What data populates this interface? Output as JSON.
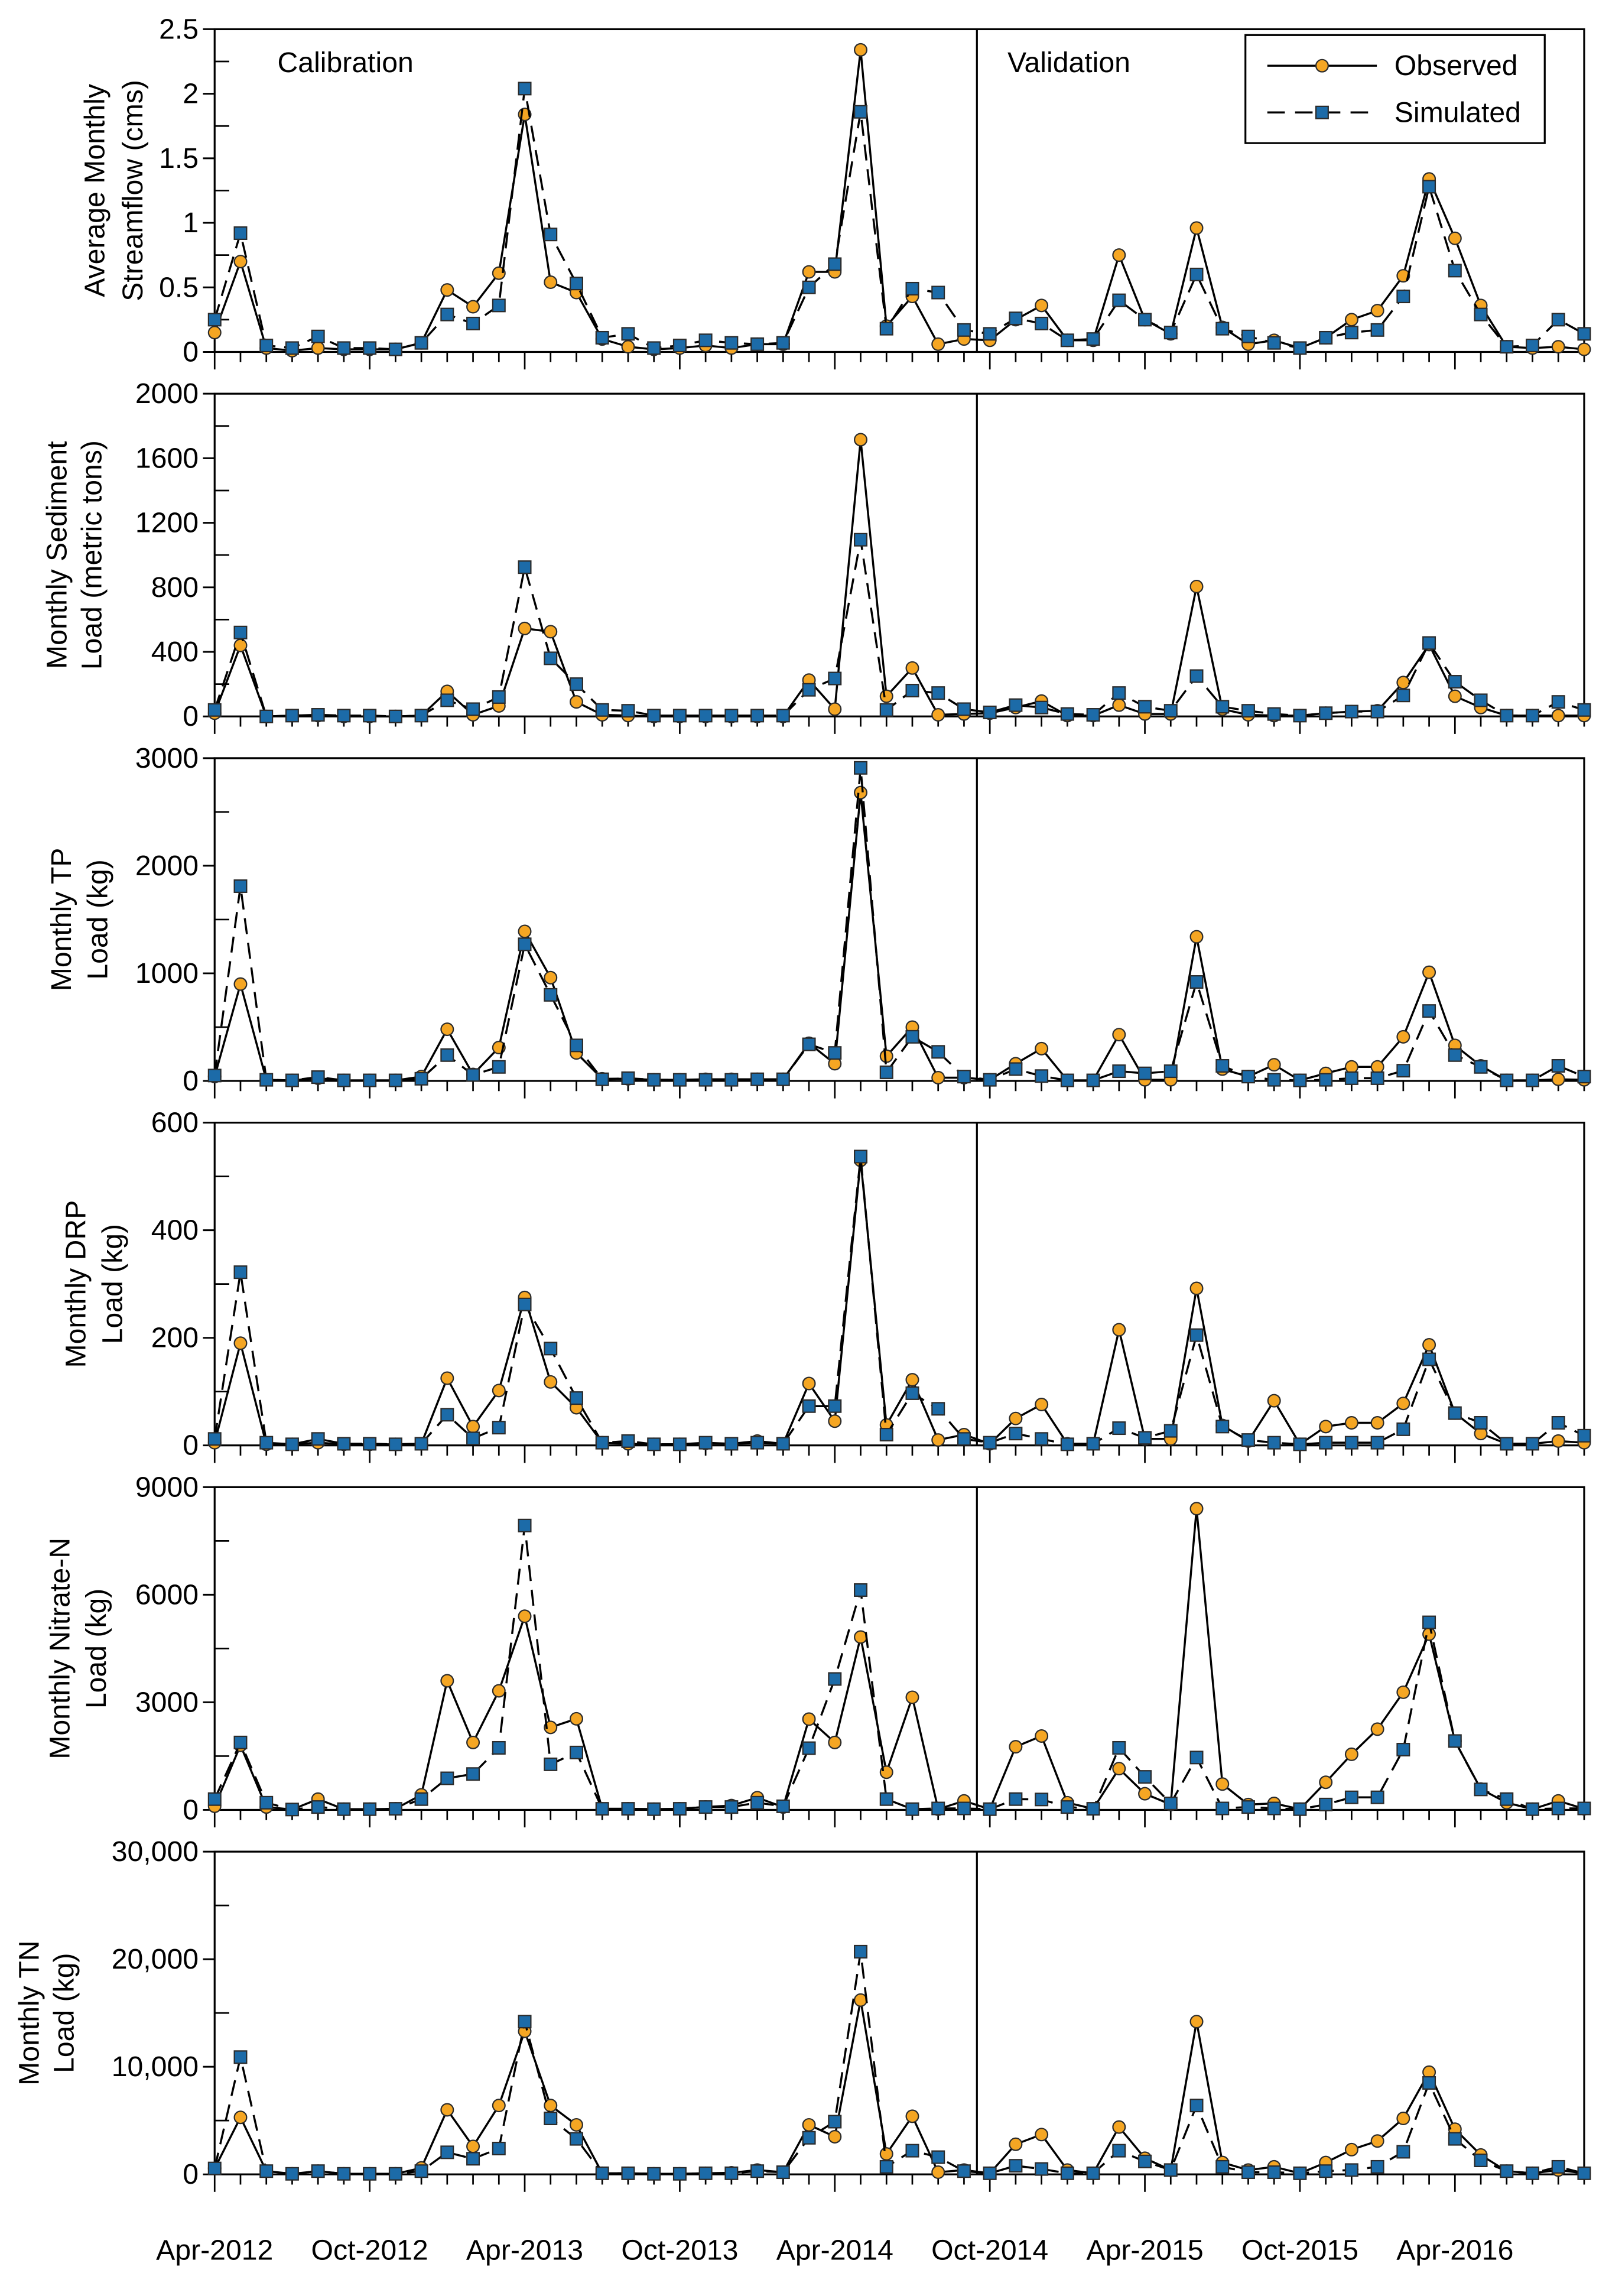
{
  "chart_data": {
    "type": "line",
    "x": [
      0,
      1,
      2,
      3,
      4,
      5,
      6,
      7,
      8,
      9,
      10,
      11,
      12,
      13,
      14,
      15,
      16,
      17,
      18,
      19,
      20,
      21,
      22,
      23,
      24,
      25,
      26,
      27,
      28,
      29,
      30,
      31,
      32,
      33,
      34,
      35,
      36,
      37,
      38,
      39,
      40,
      41,
      42,
      43,
      44,
      45,
      46,
      47,
      48,
      49,
      50,
      51,
      52,
      53
    ],
    "xticks": [
      0,
      6,
      12,
      18,
      24,
      30,
      36,
      42,
      48
    ],
    "xtick_labels": [
      "Apr-2012",
      "Oct-2012",
      "Apr-2013",
      "Oct-2013",
      "Apr-2014",
      "Oct-2014",
      "Apr-2015",
      "Oct-2015",
      "Apr-2016"
    ],
    "validation_split": 29.5,
    "calibration_label": "Calibration",
    "validation_label": "Validation",
    "legend": [
      "Observed",
      "Simulated"
    ],
    "panels": [
      {
        "ylabel": [
          "Average Monthly",
          "Streamflow (cms)"
        ],
        "ylim": [
          0,
          2.5
        ],
        "yticks": [
          0,
          0.5,
          1,
          1.5,
          2,
          2.5
        ],
        "ytick_labels": [
          "0",
          "0.5",
          "1",
          "1.5",
          "2",
          "2.5"
        ],
        "observed": [
          0.15,
          0.7,
          0.03,
          0.01,
          0.03,
          0.02,
          0.02,
          0.02,
          0.07,
          0.48,
          0.35,
          0.61,
          1.84,
          0.54,
          0.46,
          0.1,
          0.04,
          0.02,
          0.03,
          0.05,
          0.03,
          0.06,
          0.06,
          0.62,
          0.62,
          2.34,
          0.2,
          0.43,
          0.06,
          0.1,
          0.09,
          0.25,
          0.36,
          0.09,
          0.09,
          0.75,
          0.25,
          0.14,
          0.96,
          0.19,
          0.06,
          0.09,
          0.03,
          0.11,
          0.25,
          0.32,
          0.59,
          1.34,
          0.88,
          0.36,
          0.04,
          0.03,
          0.04,
          0.02
        ],
        "simulated": [
          0.25,
          0.92,
          0.05,
          0.03,
          0.12,
          0.03,
          0.03,
          0.02,
          0.07,
          0.29,
          0.22,
          0.36,
          2.04,
          0.91,
          0.53,
          0.11,
          0.14,
          0.03,
          0.05,
          0.09,
          0.07,
          0.06,
          0.07,
          0.5,
          0.68,
          1.86,
          0.18,
          0.49,
          0.46,
          0.17,
          0.14,
          0.26,
          0.22,
          0.09,
          0.1,
          0.4,
          0.25,
          0.15,
          0.6,
          0.18,
          0.12,
          0.07,
          0.03,
          0.11,
          0.15,
          0.17,
          0.43,
          1.28,
          0.63,
          0.29,
          0.04,
          0.05,
          0.25,
          0.14
        ]
      },
      {
        "ylabel": [
          "Monthly Sediment",
          "Load (metric tons)"
        ],
        "ylim": [
          0,
          2000
        ],
        "yticks": [
          0,
          400,
          800,
          1200,
          1600,
          2000
        ],
        "ytick_labels": [
          "0",
          "400",
          "800",
          "1200",
          "1600",
          "2000"
        ],
        "observed": [
          20,
          440,
          0,
          5,
          5,
          0,
          0,
          0,
          5,
          155,
          10,
          65,
          545,
          525,
          90,
          10,
          5,
          0,
          0,
          0,
          0,
          0,
          0,
          225,
          45,
          1715,
          125,
          300,
          10,
          15,
          20,
          55,
          95,
          5,
          5,
          70,
          15,
          15,
          805,
          45,
          10,
          5,
          5,
          20,
          30,
          35,
          210,
          445,
          125,
          55,
          5,
          5,
          5,
          5
        ],
        "simulated": [
          40,
          520,
          0,
          5,
          10,
          5,
          5,
          0,
          5,
          100,
          45,
          120,
          925,
          360,
          200,
          40,
          35,
          5,
          5,
          5,
          5,
          5,
          5,
          165,
          235,
          1095,
          40,
          160,
          145,
          45,
          25,
          70,
          55,
          15,
          10,
          145,
          60,
          35,
          250,
          60,
          35,
          15,
          5,
          20,
          30,
          30,
          130,
          455,
          215,
          100,
          5,
          5,
          90,
          40
        ]
      },
      {
        "ylabel": [
          "Monthly TP",
          "Load (kg)"
        ],
        "ylim": [
          0,
          3000
        ],
        "yticks": [
          0,
          1000,
          2000,
          3000
        ],
        "ytick_labels": [
          "0",
          "1000",
          "2000",
          "3000"
        ],
        "observed": [
          40,
          900,
          10,
          5,
          25,
          5,
          5,
          5,
          40,
          480,
          60,
          310,
          1390,
          960,
          260,
          20,
          20,
          10,
          10,
          15,
          15,
          15,
          15,
          350,
          160,
          2680,
          230,
          500,
          30,
          30,
          10,
          160,
          300,
          5,
          5,
          430,
          10,
          10,
          1340,
          110,
          40,
          150,
          5,
          70,
          130,
          130,
          410,
          1010,
          330,
          140,
          5,
          5,
          15,
          10
        ],
        "simulated": [
          50,
          1810,
          10,
          5,
          35,
          5,
          5,
          5,
          20,
          240,
          55,
          130,
          1270,
          800,
          330,
          15,
          25,
          10,
          10,
          10,
          10,
          15,
          15,
          340,
          260,
          2910,
          80,
          410,
          270,
          40,
          10,
          110,
          45,
          5,
          5,
          90,
          70,
          90,
          920,
          140,
          40,
          10,
          5,
          10,
          25,
          25,
          95,
          650,
          240,
          130,
          5,
          5,
          140,
          40
        ]
      },
      {
        "ylabel": [
          "Monthly DRP",
          "Load (kg)"
        ],
        "ylim": [
          0,
          600
        ],
        "yticks": [
          0,
          200,
          400,
          600
        ],
        "ytick_labels": [
          "0",
          "200",
          "400",
          "600"
        ],
        "observed": [
          5,
          190,
          2,
          2,
          5,
          2,
          2,
          2,
          3,
          125,
          35,
          102,
          275,
          118,
          70,
          5,
          3,
          2,
          2,
          4,
          3,
          8,
          3,
          115,
          45,
          530,
          38,
          122,
          10,
          20,
          3,
          50,
          76,
          3,
          3,
          215,
          12,
          12,
          292,
          37,
          8,
          83,
          2,
          35,
          42,
          42,
          78,
          187,
          60,
          22,
          3,
          3,
          8,
          5
        ],
        "simulated": [
          12,
          322,
          5,
          2,
          12,
          3,
          3,
          2,
          3,
          57,
          13,
          33,
          262,
          180,
          88,
          5,
          8,
          2,
          2,
          5,
          3,
          5,
          3,
          73,
          73,
          537,
          20,
          97,
          68,
          12,
          5,
          22,
          12,
          2,
          3,
          32,
          14,
          27,
          205,
          35,
          10,
          5,
          2,
          5,
          5,
          5,
          30,
          160,
          60,
          42,
          3,
          3,
          42,
          18
        ]
      },
      {
        "ylabel": [
          "Monthly Nitrate-N",
          "Load (kg)"
        ],
        "ylim": [
          0,
          9000
        ],
        "yticks": [
          0,
          3000,
          6000,
          9000
        ],
        "ytick_labels": [
          "0",
          "3000",
          "6000",
          "9000"
        ],
        "observed": [
          100,
          1800,
          80,
          10,
          300,
          20,
          20,
          30,
          420,
          3600,
          1880,
          3320,
          5400,
          2300,
          2540,
          30,
          30,
          20,
          30,
          80,
          120,
          340,
          80,
          2530,
          1880,
          4820,
          1050,
          3140,
          20,
          250,
          20,
          1760,
          2060,
          200,
          30,
          1150,
          450,
          150,
          8400,
          720,
          150,
          180,
          20,
          770,
          1550,
          2250,
          3280,
          4900,
          1920,
          580,
          200,
          20,
          250,
          30
        ],
        "simulated": [
          300,
          1880,
          200,
          10,
          80,
          20,
          20,
          30,
          300,
          880,
          1000,
          1730,
          7930,
          1270,
          1600,
          30,
          30,
          20,
          30,
          80,
          80,
          200,
          100,
          1720,
          3650,
          6130,
          300,
          20,
          40,
          40,
          20,
          300,
          290,
          80,
          30,
          1730,
          920,
          180,
          1460,
          40,
          80,
          40,
          20,
          150,
          350,
          350,
          1680,
          5230,
          1920,
          570,
          300,
          20,
          40,
          40
        ]
      },
      {
        "ylabel": [
          "Monthly TN",
          "Load (kg)"
        ],
        "ylim": [
          0,
          30000
        ],
        "yticks": [
          0,
          10000,
          20000,
          30000
        ],
        "ytick_labels": [
          "0",
          "10,000",
          "20,000",
          "30,000"
        ],
        "observed": [
          550,
          5300,
          300,
          50,
          300,
          50,
          50,
          50,
          600,
          6000,
          2600,
          6400,
          13300,
          6400,
          4600,
          100,
          100,
          50,
          50,
          100,
          150,
          400,
          200,
          4600,
          3500,
          16200,
          1900,
          5400,
          200,
          400,
          100,
          2800,
          3700,
          400,
          100,
          4400,
          1500,
          400,
          14200,
          1100,
          400,
          700,
          100,
          1100,
          2300,
          3100,
          5200,
          9500,
          4200,
          1800,
          300,
          100,
          400,
          100
        ],
        "simulated": [
          550,
          10900,
          300,
          50,
          300,
          50,
          50,
          50,
          300,
          2050,
          1450,
          2400,
          14200,
          5200,
          3300,
          100,
          100,
          50,
          50,
          100,
          100,
          300,
          200,
          3400,
          4900,
          20700,
          700,
          2200,
          1600,
          300,
          100,
          800,
          500,
          100,
          100,
          2200,
          1200,
          400,
          6400,
          700,
          200,
          200,
          100,
          300,
          400,
          700,
          2100,
          8500,
          3300,
          1300,
          300,
          100,
          700,
          100
        ]
      }
    ]
  },
  "colors": {
    "observed": "#F5A623",
    "simulated": "#1C6BA8",
    "line": "#000000",
    "marker_edge": "#2B2B2B"
  }
}
